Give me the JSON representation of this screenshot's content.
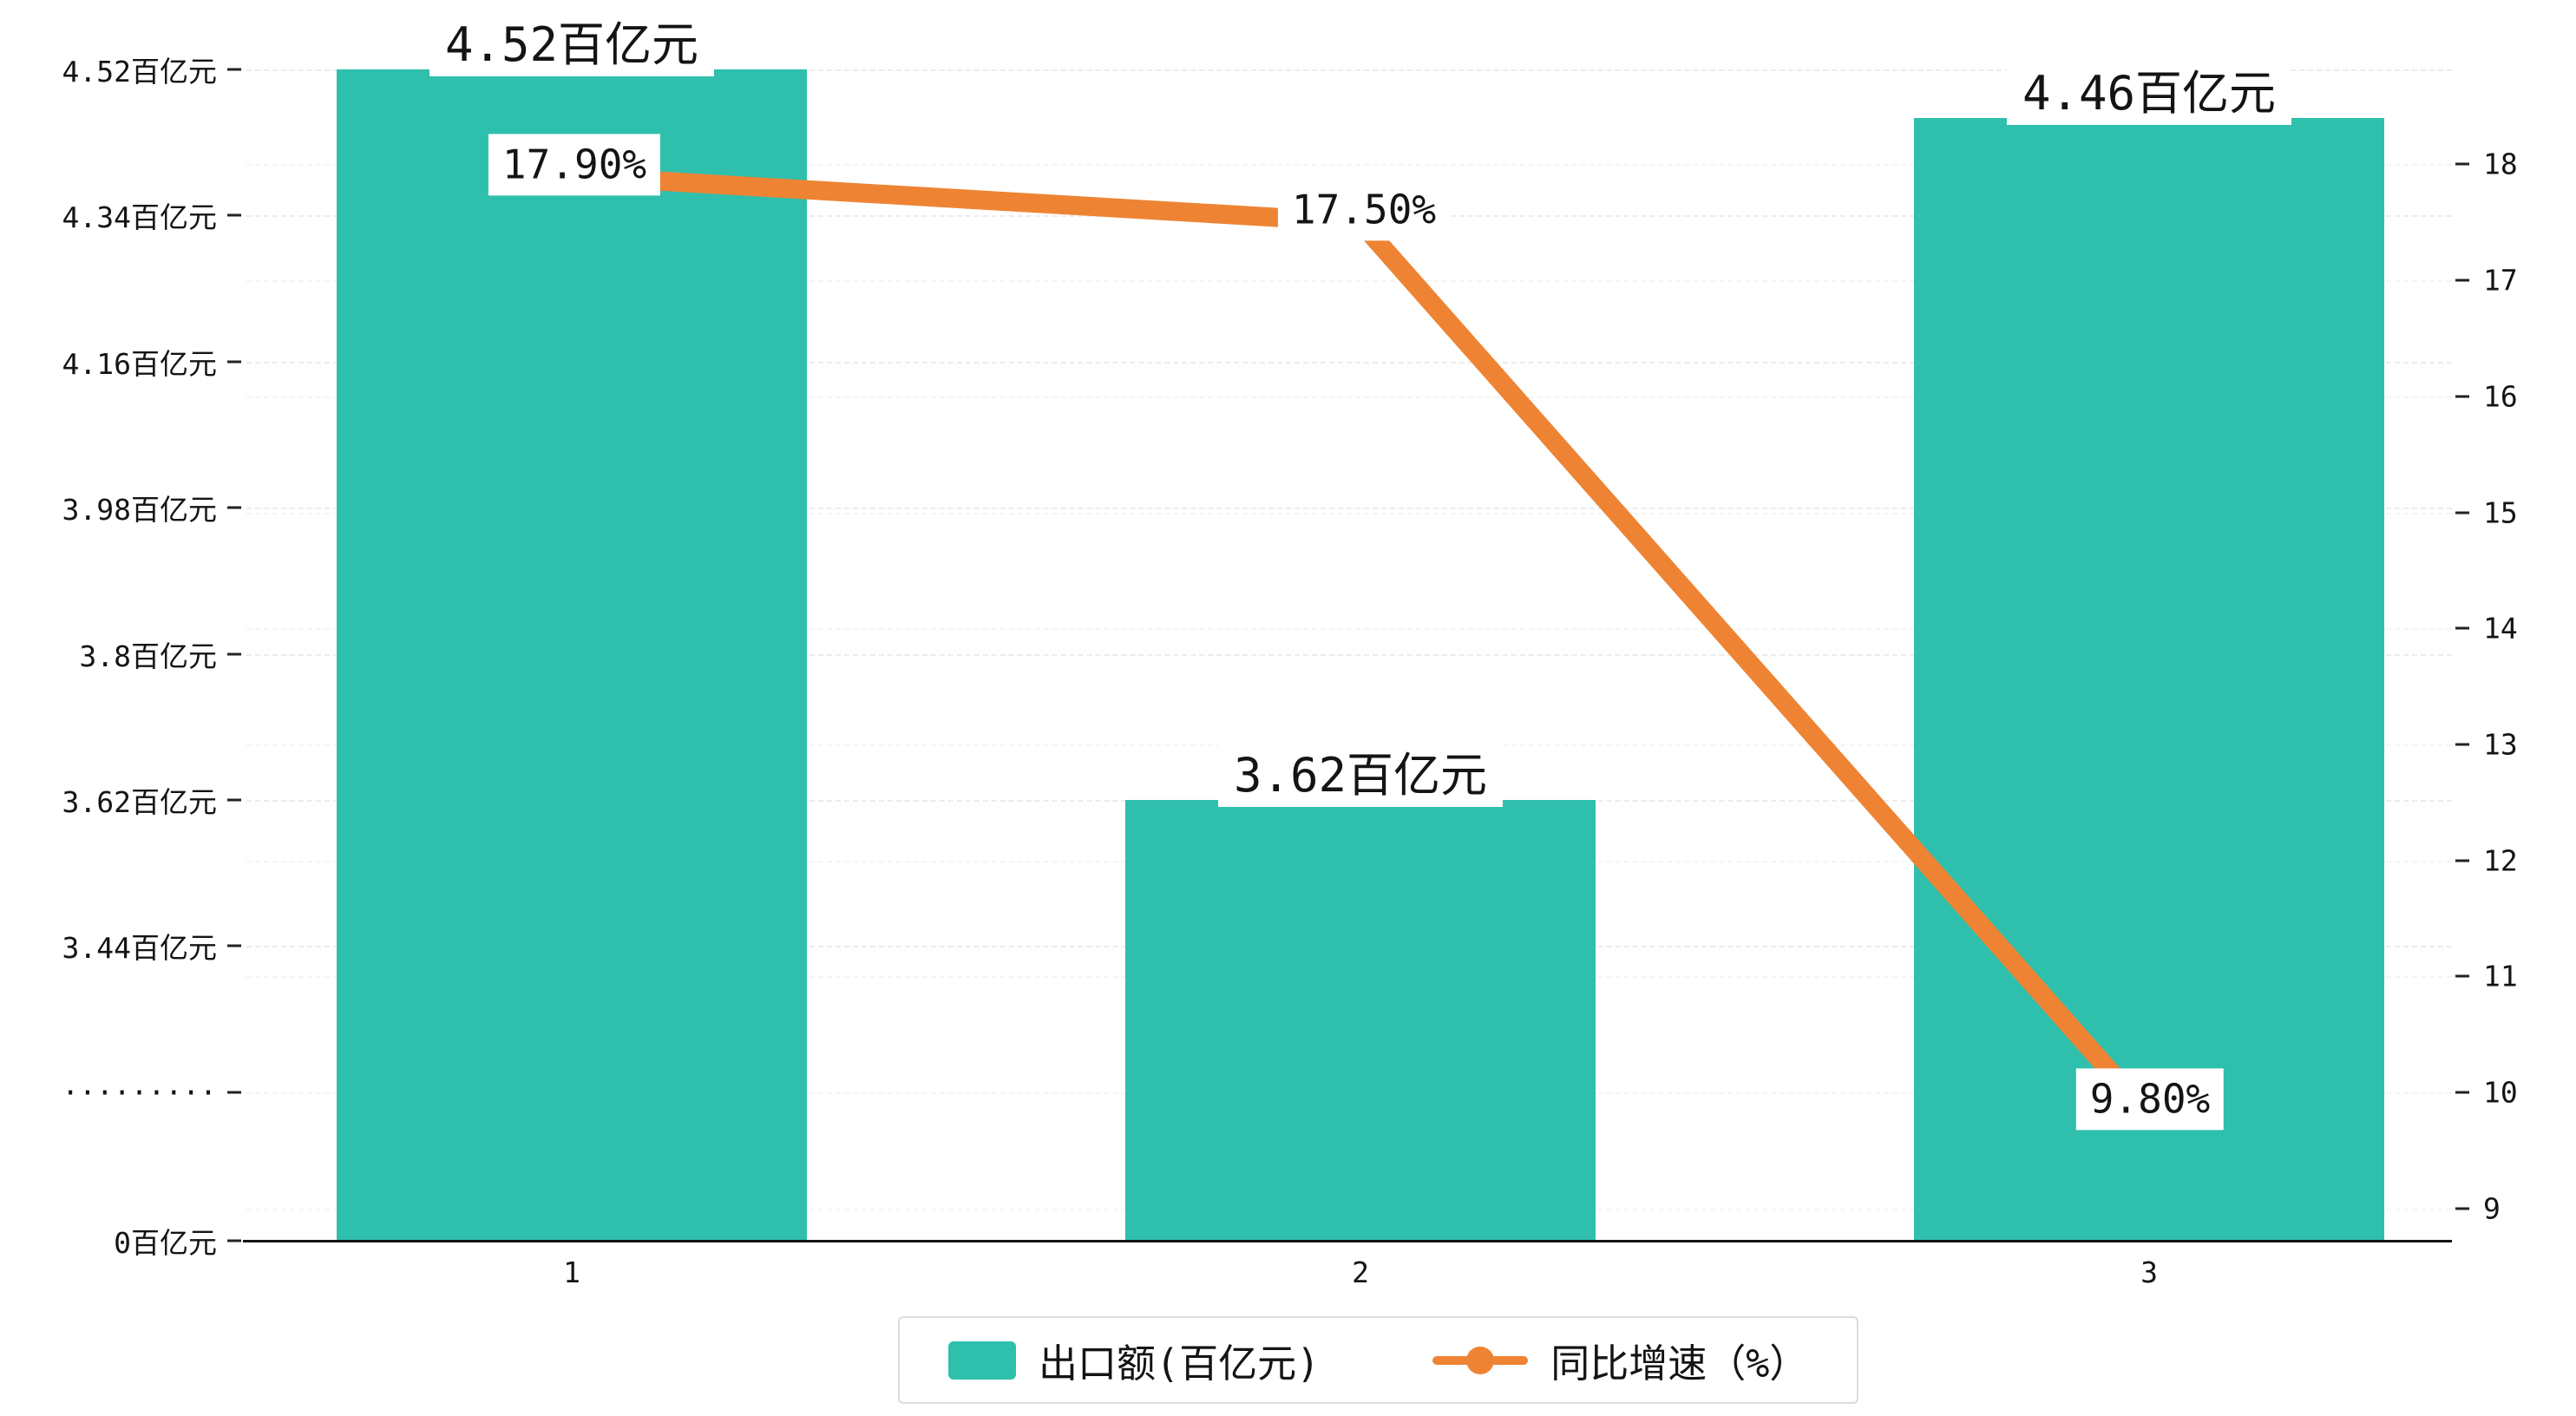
{
  "chart_data": {
    "type": "bar",
    "subtype": "bar+line combo, dual y-axis, broken left axis",
    "categories": [
      "1",
      "2",
      "3"
    ],
    "series": [
      {
        "name": "出口额(百亿元)",
        "kind": "bar",
        "values": [
          4.52,
          3.62,
          4.46
        ],
        "labels": [
          "4.52百亿元",
          "3.62百亿元",
          "4.46百亿元"
        ],
        "color": "#2fbfad"
      },
      {
        "name": "同比增速（%）",
        "kind": "line",
        "values": [
          17.9,
          17.5,
          9.8
        ],
        "labels": [
          "17.90%",
          "17.50%",
          "9.80%"
        ],
        "color": "#ee8433"
      }
    ],
    "left_axis": {
      "ticks": [
        "4.52百亿元",
        "4.34百亿元",
        "4.16百亿元",
        "3.98百亿元",
        "3.8百亿元",
        "3.62百亿元",
        "3.44百亿元",
        "·········",
        "0百亿元"
      ],
      "tick_values": [
        4.52,
        4.34,
        4.16,
        3.98,
        3.8,
        3.62,
        3.44,
        null,
        0
      ],
      "broken": true,
      "break_marker": "·········"
    },
    "right_axis": {
      "ticks": [
        "18",
        "17",
        "16",
        "15",
        "14",
        "13",
        "12",
        "11",
        "10",
        "9"
      ],
      "min": 9,
      "max": 18
    },
    "legend": [
      {
        "label": "出口额(百亿元)",
        "swatch": "bar",
        "color": "#2fbfad"
      },
      {
        "label": "同比增速（%）",
        "swatch": "line",
        "color": "#ee8433"
      }
    ],
    "grid": "dashed",
    "legend_position": "bottom-center",
    "background": "#ffffff"
  }
}
